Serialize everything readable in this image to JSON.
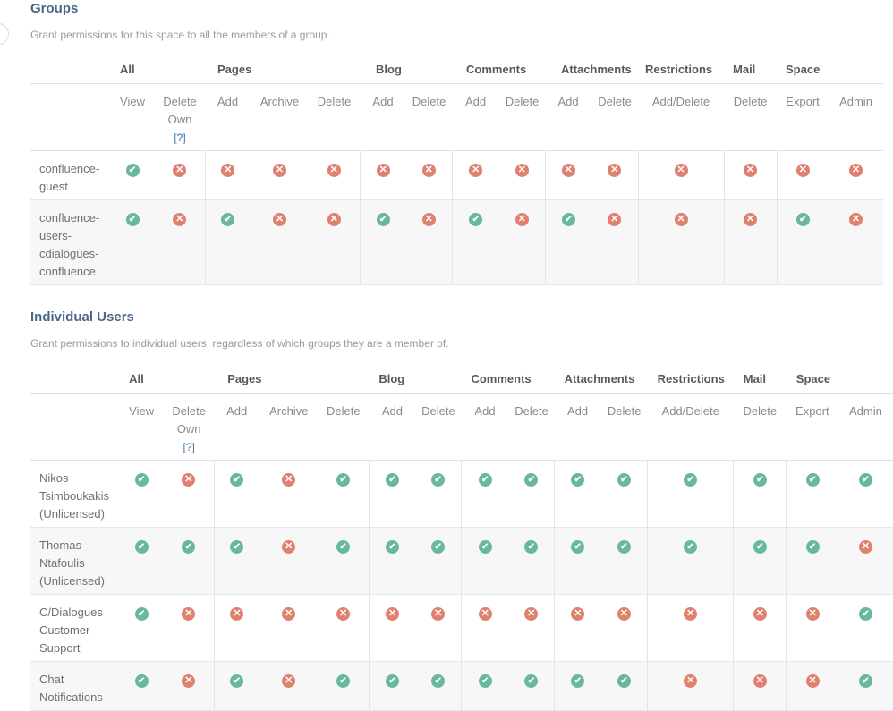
{
  "groups": {
    "title": "Groups",
    "description": "Grant permissions for this space to all the members of a group.",
    "categories": [
      "All",
      "Pages",
      "Blog",
      "Comments",
      "Attachments",
      "Restrictions",
      "Mail",
      "Space"
    ],
    "columns": [
      "View",
      "Delete",
      "Add",
      "Archive",
      "Delete",
      "Add",
      "Delete",
      "Add",
      "Delete",
      "Add",
      "Delete",
      "Add/Delete",
      "Delete",
      "Export",
      "Admin"
    ],
    "delete_own_second_line": "Own",
    "help_link": "[?]",
    "rows": [
      {
        "name_lines": [
          "confluence-",
          "guest"
        ],
        "perms": [
          true,
          false,
          false,
          false,
          false,
          false,
          false,
          false,
          false,
          false,
          false,
          false,
          false,
          false,
          false
        ]
      },
      {
        "name_lines": [
          "confluence-",
          "users-",
          "cdialogues-",
          "confluence"
        ],
        "perms": [
          true,
          false,
          true,
          false,
          false,
          true,
          false,
          true,
          false,
          true,
          false,
          false,
          false,
          true,
          false
        ]
      }
    ]
  },
  "users": {
    "title": "Individual Users",
    "description": "Grant permissions to individual users, regardless of which groups they are a member of.",
    "categories": [
      "All",
      "Pages",
      "Blog",
      "Comments",
      "Attachments",
      "Restrictions",
      "Mail",
      "Space"
    ],
    "columns": [
      "View",
      "Delete",
      "Add",
      "Archive",
      "Delete",
      "Add",
      "Delete",
      "Add",
      "Delete",
      "Add",
      "Delete",
      "Add/Delete",
      "Delete",
      "Export",
      "Admin"
    ],
    "delete_own_second_line": "Own",
    "help_link": "[?]",
    "rows": [
      {
        "name_lines": [
          "Nikos",
          "Tsimboukakis",
          "(Unlicensed)"
        ],
        "perms": [
          true,
          false,
          true,
          false,
          true,
          true,
          true,
          true,
          true,
          true,
          true,
          true,
          true,
          true,
          true
        ]
      },
      {
        "name_lines": [
          "Thomas",
          "Ntafoulis",
          "(Unlicensed)"
        ],
        "perms": [
          true,
          true,
          true,
          false,
          true,
          true,
          true,
          true,
          true,
          true,
          true,
          true,
          true,
          true,
          false
        ]
      },
      {
        "name_lines": [
          "C/Dialogues",
          "Customer",
          "Support"
        ],
        "perms": [
          true,
          false,
          false,
          false,
          false,
          false,
          false,
          false,
          false,
          false,
          false,
          false,
          false,
          false,
          true
        ]
      },
      {
        "name_lines": [
          "Chat",
          "Notifications"
        ],
        "perms": [
          true,
          false,
          true,
          false,
          true,
          true,
          true,
          true,
          true,
          true,
          true,
          false,
          false,
          false,
          true
        ]
      }
    ]
  },
  "icons": {
    "granted": "check-circle-icon",
    "denied": "x-circle-icon",
    "granted_color": "#67b999",
    "denied_color": "#e0806f"
  }
}
